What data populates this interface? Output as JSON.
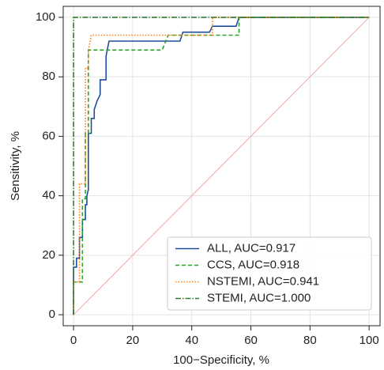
{
  "chart_data": {
    "type": "line",
    "xlabel": "100−Specificity, %",
    "ylabel": "Sensitivity, %",
    "xlim": [
      -3.5,
      103.7
    ],
    "ylim": [
      -3.7,
      103.7
    ],
    "xticks": [
      0,
      20,
      40,
      60,
      80,
      100
    ],
    "yticks": [
      0,
      20,
      40,
      60,
      80,
      100
    ],
    "grid": true,
    "legend": "lower right",
    "reference_line": {
      "x": [
        0,
        100
      ],
      "values": [
        0,
        100
      ],
      "color": "#f2a7a7"
    },
    "series": [
      {
        "name": "ALL, AUC=0.917",
        "color": "#1f4e9c",
        "dash": "none",
        "x": [
          0,
          0,
          1,
          1,
          2,
          2,
          3,
          3,
          4,
          4,
          4.5,
          4.5,
          5,
          5,
          6,
          6,
          7,
          7,
          8,
          9,
          9,
          11,
          11,
          12,
          36,
          37,
          46,
          47,
          55,
          56,
          100
        ],
        "values": [
          0,
          16,
          16,
          19,
          19,
          26,
          26,
          32,
          32,
          37,
          37,
          40,
          42,
          61,
          61,
          66,
          66,
          69,
          72,
          74,
          79,
          79,
          87,
          92,
          92,
          95,
          95,
          97,
          97,
          100,
          100
        ]
      },
      {
        "name": "CCS, AUC=0.918",
        "color": "#2ca02c",
        "dash": "5,3",
        "x": [
          0,
          0,
          3,
          3,
          4,
          4,
          5,
          5,
          30,
          32,
          56,
          56,
          100
        ],
        "values": [
          0,
          11,
          11,
          39,
          39,
          61,
          61,
          89,
          89,
          94,
          94,
          100,
          100
        ]
      },
      {
        "name": "NSTEMI, AUC=0.941",
        "color": "#ff7f0e",
        "dash": "1.5,2",
        "x": [
          0,
          0,
          2,
          2,
          4,
          4,
          5,
          5,
          6,
          47,
          47,
          100
        ],
        "values": [
          0,
          11,
          11,
          44,
          44,
          83,
          83,
          89,
          94,
          94,
          100,
          100
        ]
      },
      {
        "name": "STEMI, AUC=1.000",
        "color": "#2e7d32",
        "dash": "7,2,1.5,2",
        "x": [
          0,
          0,
          100
        ],
        "values": [
          0,
          100,
          100
        ]
      }
    ]
  }
}
